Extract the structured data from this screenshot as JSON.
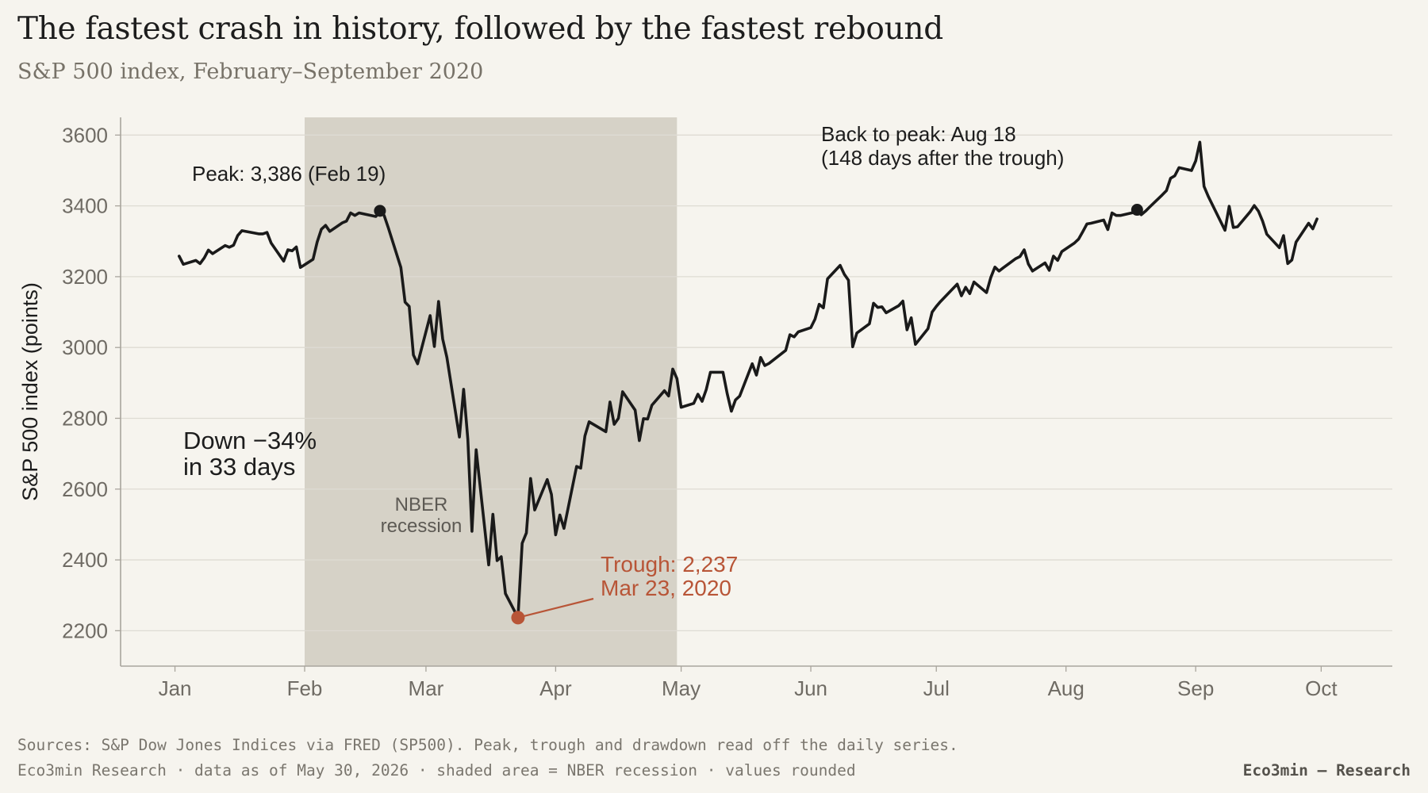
{
  "header": {
    "title": "The fastest crash in history, followed by the fastest rebound",
    "subtitle": "S&P 500 index, February–September 2020"
  },
  "footer": {
    "sources": "Sources: S&P Dow Jones Indices via FRED (SP500). Peak, trough and drawdown read off the daily series.",
    "notes": "Eco3min Research · data as of May 30, 2026 · shaded area = NBER recession · values rounded",
    "brand": "Eco3min — Research"
  },
  "colors": {
    "background": "#f6f4ee",
    "line": "#1a1a1a",
    "recession_shade": "#d6d2c7",
    "trough_accent": "#b85537",
    "grid": "#dedbd3",
    "axis_text": "#6f6b64"
  },
  "chart_data": {
    "type": "line",
    "title": "The fastest crash in history, followed by the fastest rebound",
    "subtitle": "S&P 500 index, February–September 2020",
    "xlabel": "",
    "ylabel": "S&P 500 index (points)",
    "x_tick_labels": [
      "Jan",
      "Feb",
      "Mar",
      "Apr",
      "May",
      "Jun",
      "Jul",
      "Aug",
      "Sep",
      "Oct"
    ],
    "x_tick_dates": [
      "2020-01-01",
      "2020-02-01",
      "2020-03-01",
      "2020-04-01",
      "2020-05-01",
      "2020-06-01",
      "2020-07-01",
      "2020-08-01",
      "2020-09-01",
      "2020-10-01"
    ],
    "xlim": [
      "2019-12-19",
      "2020-10-18"
    ],
    "y_ticks": [
      2200,
      2400,
      2600,
      2800,
      3000,
      3200,
      3400,
      3600
    ],
    "ylim": [
      2100,
      3650
    ],
    "grid": "horizontal",
    "series": [
      {
        "name": "",
        "points": [
          [
            "2020-01-02",
            3258
          ],
          [
            "2020-01-03",
            3235
          ],
          [
            "2020-01-06",
            3246
          ],
          [
            "2020-01-07",
            3237
          ],
          [
            "2020-01-08",
            3253
          ],
          [
            "2020-01-09",
            3275
          ],
          [
            "2020-01-10",
            3265
          ],
          [
            "2020-01-13",
            3288
          ],
          [
            "2020-01-14",
            3283
          ],
          [
            "2020-01-15",
            3289
          ],
          [
            "2020-01-16",
            3316
          ],
          [
            "2020-01-17",
            3330
          ],
          [
            "2020-01-21",
            3321
          ],
          [
            "2020-01-22",
            3321
          ],
          [
            "2020-01-23",
            3325
          ],
          [
            "2020-01-24",
            3295
          ],
          [
            "2020-01-27",
            3244
          ],
          [
            "2020-01-28",
            3276
          ],
          [
            "2020-01-29",
            3273
          ],
          [
            "2020-01-30",
            3284
          ],
          [
            "2020-01-31",
            3226
          ],
          [
            "2020-02-03",
            3249
          ],
          [
            "2020-02-04",
            3298
          ],
          [
            "2020-02-05",
            3334
          ],
          [
            "2020-02-06",
            3345
          ],
          [
            "2020-02-07",
            3328
          ],
          [
            "2020-02-10",
            3352
          ],
          [
            "2020-02-11",
            3357
          ],
          [
            "2020-02-12",
            3380
          ],
          [
            "2020-02-13",
            3373
          ],
          [
            "2020-02-14",
            3380
          ],
          [
            "2020-02-18",
            3370
          ],
          [
            "2020-02-19",
            3386
          ],
          [
            "2020-02-20",
            3373
          ],
          [
            "2020-02-21",
            3338
          ],
          [
            "2020-02-24",
            3226
          ],
          [
            "2020-02-25",
            3128
          ],
          [
            "2020-02-26",
            3116
          ],
          [
            "2020-02-27",
            2979
          ],
          [
            "2020-02-28",
            2954
          ],
          [
            "2020-03-02",
            3090
          ],
          [
            "2020-03-03",
            3003
          ],
          [
            "2020-03-04",
            3130
          ],
          [
            "2020-03-05",
            3024
          ],
          [
            "2020-03-06",
            2972
          ],
          [
            "2020-03-09",
            2747
          ],
          [
            "2020-03-10",
            2882
          ],
          [
            "2020-03-11",
            2741
          ],
          [
            "2020-03-12",
            2481
          ],
          [
            "2020-03-13",
            2711
          ],
          [
            "2020-03-16",
            2386
          ],
          [
            "2020-03-17",
            2529
          ],
          [
            "2020-03-18",
            2398
          ],
          [
            "2020-03-19",
            2409
          ],
          [
            "2020-03-20",
            2305
          ],
          [
            "2020-03-23",
            2237
          ],
          [
            "2020-03-24",
            2447
          ],
          [
            "2020-03-25",
            2476
          ],
          [
            "2020-03-26",
            2630
          ],
          [
            "2020-03-27",
            2541
          ],
          [
            "2020-03-30",
            2627
          ],
          [
            "2020-03-31",
            2585
          ],
          [
            "2020-04-01",
            2471
          ],
          [
            "2020-04-02",
            2527
          ],
          [
            "2020-04-03",
            2489
          ],
          [
            "2020-04-06",
            2664
          ],
          [
            "2020-04-07",
            2659
          ],
          [
            "2020-04-08",
            2750
          ],
          [
            "2020-04-09",
            2790
          ],
          [
            "2020-04-13",
            2762
          ],
          [
            "2020-04-14",
            2846
          ],
          [
            "2020-04-15",
            2783
          ],
          [
            "2020-04-16",
            2800
          ],
          [
            "2020-04-17",
            2875
          ],
          [
            "2020-04-20",
            2823
          ],
          [
            "2020-04-21",
            2737
          ],
          [
            "2020-04-22",
            2799
          ],
          [
            "2020-04-23",
            2798
          ],
          [
            "2020-04-24",
            2837
          ],
          [
            "2020-04-27",
            2878
          ],
          [
            "2020-04-28",
            2863
          ],
          [
            "2020-04-29",
            2939
          ],
          [
            "2020-04-30",
            2912
          ],
          [
            "2020-05-01",
            2831
          ],
          [
            "2020-05-04",
            2842
          ],
          [
            "2020-05-05",
            2868
          ],
          [
            "2020-05-06",
            2848
          ],
          [
            "2020-05-07",
            2881
          ],
          [
            "2020-05-08",
            2930
          ],
          [
            "2020-05-11",
            2930
          ],
          [
            "2020-05-12",
            2870
          ],
          [
            "2020-05-13",
            2820
          ],
          [
            "2020-05-14",
            2852
          ],
          [
            "2020-05-15",
            2863
          ],
          [
            "2020-05-18",
            2954
          ],
          [
            "2020-05-19",
            2922
          ],
          [
            "2020-05-20",
            2972
          ],
          [
            "2020-05-21",
            2949
          ],
          [
            "2020-05-22",
            2955
          ],
          [
            "2020-05-26",
            2992
          ],
          [
            "2020-05-27",
            3036
          ],
          [
            "2020-05-28",
            3030
          ],
          [
            "2020-05-29",
            3044
          ],
          [
            "2020-06-01",
            3056
          ],
          [
            "2020-06-02",
            3080
          ],
          [
            "2020-06-03",
            3122
          ],
          [
            "2020-06-04",
            3112
          ],
          [
            "2020-06-05",
            3194
          ],
          [
            "2020-06-08",
            3232
          ],
          [
            "2020-06-09",
            3207
          ],
          [
            "2020-06-10",
            3190
          ],
          [
            "2020-06-11",
            3002
          ],
          [
            "2020-06-12",
            3041
          ],
          [
            "2020-06-15",
            3067
          ],
          [
            "2020-06-16",
            3125
          ],
          [
            "2020-06-17",
            3113
          ],
          [
            "2020-06-18",
            3115
          ],
          [
            "2020-06-19",
            3098
          ],
          [
            "2020-06-22",
            3118
          ],
          [
            "2020-06-23",
            3131
          ],
          [
            "2020-06-24",
            3050
          ],
          [
            "2020-06-25",
            3084
          ],
          [
            "2020-06-26",
            3009
          ],
          [
            "2020-06-29",
            3053
          ],
          [
            "2020-06-30",
            3100
          ],
          [
            "2020-07-01",
            3116
          ],
          [
            "2020-07-02",
            3130
          ],
          [
            "2020-07-06",
            3179
          ],
          [
            "2020-07-07",
            3146
          ],
          [
            "2020-07-08",
            3170
          ],
          [
            "2020-07-09",
            3152
          ],
          [
            "2020-07-10",
            3185
          ],
          [
            "2020-07-13",
            3155
          ],
          [
            "2020-07-14",
            3197
          ],
          [
            "2020-07-15",
            3227
          ],
          [
            "2020-07-16",
            3216
          ],
          [
            "2020-07-17",
            3225
          ],
          [
            "2020-07-20",
            3251
          ],
          [
            "2020-07-21",
            3257
          ],
          [
            "2020-07-22",
            3276
          ],
          [
            "2020-07-23",
            3236
          ],
          [
            "2020-07-24",
            3216
          ],
          [
            "2020-07-27",
            3239
          ],
          [
            "2020-07-28",
            3218
          ],
          [
            "2020-07-29",
            3258
          ],
          [
            "2020-07-30",
            3246
          ],
          [
            "2020-07-31",
            3271
          ],
          [
            "2020-08-03",
            3295
          ],
          [
            "2020-08-04",
            3306
          ],
          [
            "2020-08-05",
            3327
          ],
          [
            "2020-08-06",
            3349
          ],
          [
            "2020-08-07",
            3351
          ],
          [
            "2020-08-10",
            3360
          ],
          [
            "2020-08-11",
            3333
          ],
          [
            "2020-08-12",
            3380
          ],
          [
            "2020-08-13",
            3373
          ],
          [
            "2020-08-14",
            3373
          ],
          [
            "2020-08-17",
            3381
          ],
          [
            "2020-08-18",
            3389
          ],
          [
            "2020-08-19",
            3375
          ],
          [
            "2020-08-20",
            3385
          ],
          [
            "2020-08-21",
            3397
          ],
          [
            "2020-08-24",
            3431
          ],
          [
            "2020-08-25",
            3443
          ],
          [
            "2020-08-26",
            3478
          ],
          [
            "2020-08-27",
            3485
          ],
          [
            "2020-08-28",
            3508
          ],
          [
            "2020-08-31",
            3500
          ],
          [
            "2020-09-01",
            3527
          ],
          [
            "2020-09-02",
            3580
          ],
          [
            "2020-09-03",
            3455
          ],
          [
            "2020-09-04",
            3427
          ],
          [
            "2020-09-08",
            3331
          ],
          [
            "2020-09-09",
            3399
          ],
          [
            "2020-09-10",
            3339
          ],
          [
            "2020-09-11",
            3341
          ],
          [
            "2020-09-14",
            3383
          ],
          [
            "2020-09-15",
            3401
          ],
          [
            "2020-09-16",
            3385
          ],
          [
            "2020-09-17",
            3357
          ],
          [
            "2020-09-18",
            3320
          ],
          [
            "2020-09-21",
            3282
          ],
          [
            "2020-09-22",
            3316
          ],
          [
            "2020-09-23",
            3237
          ],
          [
            "2020-09-24",
            3247
          ],
          [
            "2020-09-25",
            3298
          ],
          [
            "2020-09-28",
            3351
          ],
          [
            "2020-09-29",
            3335
          ],
          [
            "2020-09-30",
            3363
          ]
        ]
      }
    ],
    "shaded_regions": [
      {
        "label": "NBER\nrecession",
        "start": "2020-02-01",
        "end": "2020-04-30"
      }
    ],
    "markers": [
      {
        "name": "peak",
        "date": "2020-02-19",
        "value": 3386
      },
      {
        "name": "trough",
        "date": "2020-03-23",
        "value": 2237
      },
      {
        "name": "back-to-peak",
        "date": "2020-08-18",
        "value": 3389
      }
    ],
    "annotations": {
      "peak_label": "Peak: 3,386 (Feb 19)",
      "drawdown_line1": "Down −34%",
      "drawdown_line2": "in 33 days",
      "recession_line1": "NBER",
      "recession_line2": "recession",
      "trough_line1": "Trough: 2,237",
      "trough_line2": "Mar 23, 2020",
      "recovery_line1": "Back to peak: Aug 18",
      "recovery_line2": "(148 days after the trough)"
    }
  }
}
